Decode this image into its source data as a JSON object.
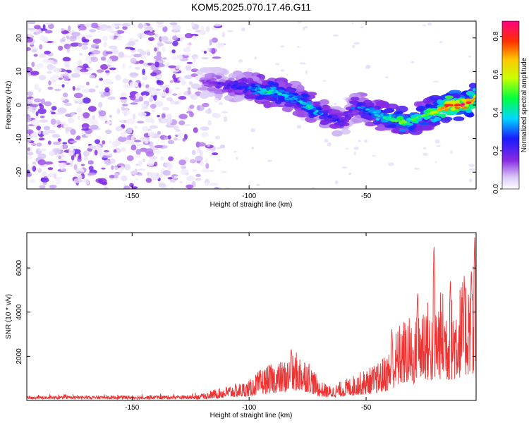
{
  "title": "KOM5.2025.070.17.46.G11",
  "chart_data": [
    {
      "id": "spectrogram",
      "type": "heatmap",
      "xlabel": "Height of straight line (km)",
      "ylabel": "Frequency (Hz)",
      "xlim": [
        -195,
        -3
      ],
      "ylim": [
        -25,
        25
      ],
      "x_ticks": [
        -150,
        -100,
        -50
      ],
      "y_ticks": [
        -20,
        -10,
        0,
        10,
        20
      ],
      "colorbar": {
        "label": "Normalized spectral amplitude",
        "range": [
          0,
          0.88
        ],
        "ticks": [
          0.0,
          0.2,
          0.4,
          0.6,
          0.8
        ],
        "tick_labels": [
          "0.0",
          "0.2",
          "0.4",
          "0.6",
          "0.8"
        ]
      },
      "signal_trace": {
        "x": [
          -120,
          -110,
          -100,
          -95,
          -90,
          -85,
          -80,
          -75,
          -70,
          -65,
          -60,
          -55,
          -50,
          -45,
          -40,
          -35,
          -30,
          -25,
          -20,
          -15,
          -10,
          -5,
          -3
        ],
        "frequency": [
          7,
          6,
          5,
          4.5,
          4,
          3,
          2,
          0,
          -2,
          -4,
          -5,
          0,
          -1,
          -3,
          -4,
          -5,
          -4.5,
          -3,
          -2,
          0,
          0,
          1,
          3
        ],
        "amplitude": [
          0.15,
          0.22,
          0.3,
          0.42,
          0.45,
          0.38,
          0.35,
          0.45,
          0.35,
          0.25,
          0.22,
          0.3,
          0.35,
          0.4,
          0.45,
          0.55,
          0.5,
          0.5,
          0.6,
          0.8,
          0.82,
          0.75,
          0.6
        ]
      },
      "noise_region_x": [
        -195,
        -118
      ]
    },
    {
      "id": "snr",
      "type": "line",
      "xlabel": "Height of straight line (km)",
      "ylabel": "SNR (10 * v/v)",
      "xlim": [
        -195,
        -3
      ],
      "ylim": [
        0,
        7600
      ],
      "x_ticks": [
        -150,
        -100,
        -50
      ],
      "y_ticks": [
        2000,
        4000,
        6000
      ],
      "line_color": "#ee3333",
      "envelope": {
        "x": [
          -195,
          -160,
          -140,
          -125,
          -118,
          -110,
          -100,
          -95,
          -90,
          -85,
          -80,
          -75,
          -70,
          -65,
          -60,
          -55,
          -50,
          -45,
          -40,
          -37,
          -35,
          -32,
          -30,
          -27,
          -25,
          -22,
          -20,
          -17,
          -15,
          -12,
          -10,
          -7,
          -5,
          -4,
          -3
        ],
        "y": [
          150,
          180,
          200,
          200,
          300,
          500,
          700,
          1100,
          1300,
          1400,
          1700,
          1500,
          700,
          500,
          700,
          900,
          1100,
          1300,
          1800,
          2500,
          2800,
          3000,
          2700,
          3300,
          3800,
          3200,
          3700,
          3900,
          3500,
          3800,
          4100,
          4500,
          4800,
          2800,
          1800
        ]
      },
      "peaks": [
        {
          "x": -82,
          "y": 2400
        },
        {
          "x": -39,
          "y": 3300
        },
        {
          "x": -28,
          "y": 5000
        },
        {
          "x": -21,
          "y": 7200
        },
        {
          "x": -14,
          "y": 5600
        },
        {
          "x": -8,
          "y": 5300
        },
        {
          "x": -5,
          "y": 6000
        },
        {
          "x": -3.6,
          "y": 7600
        },
        {
          "x": -2.5,
          "y": 6000
        }
      ]
    }
  ]
}
